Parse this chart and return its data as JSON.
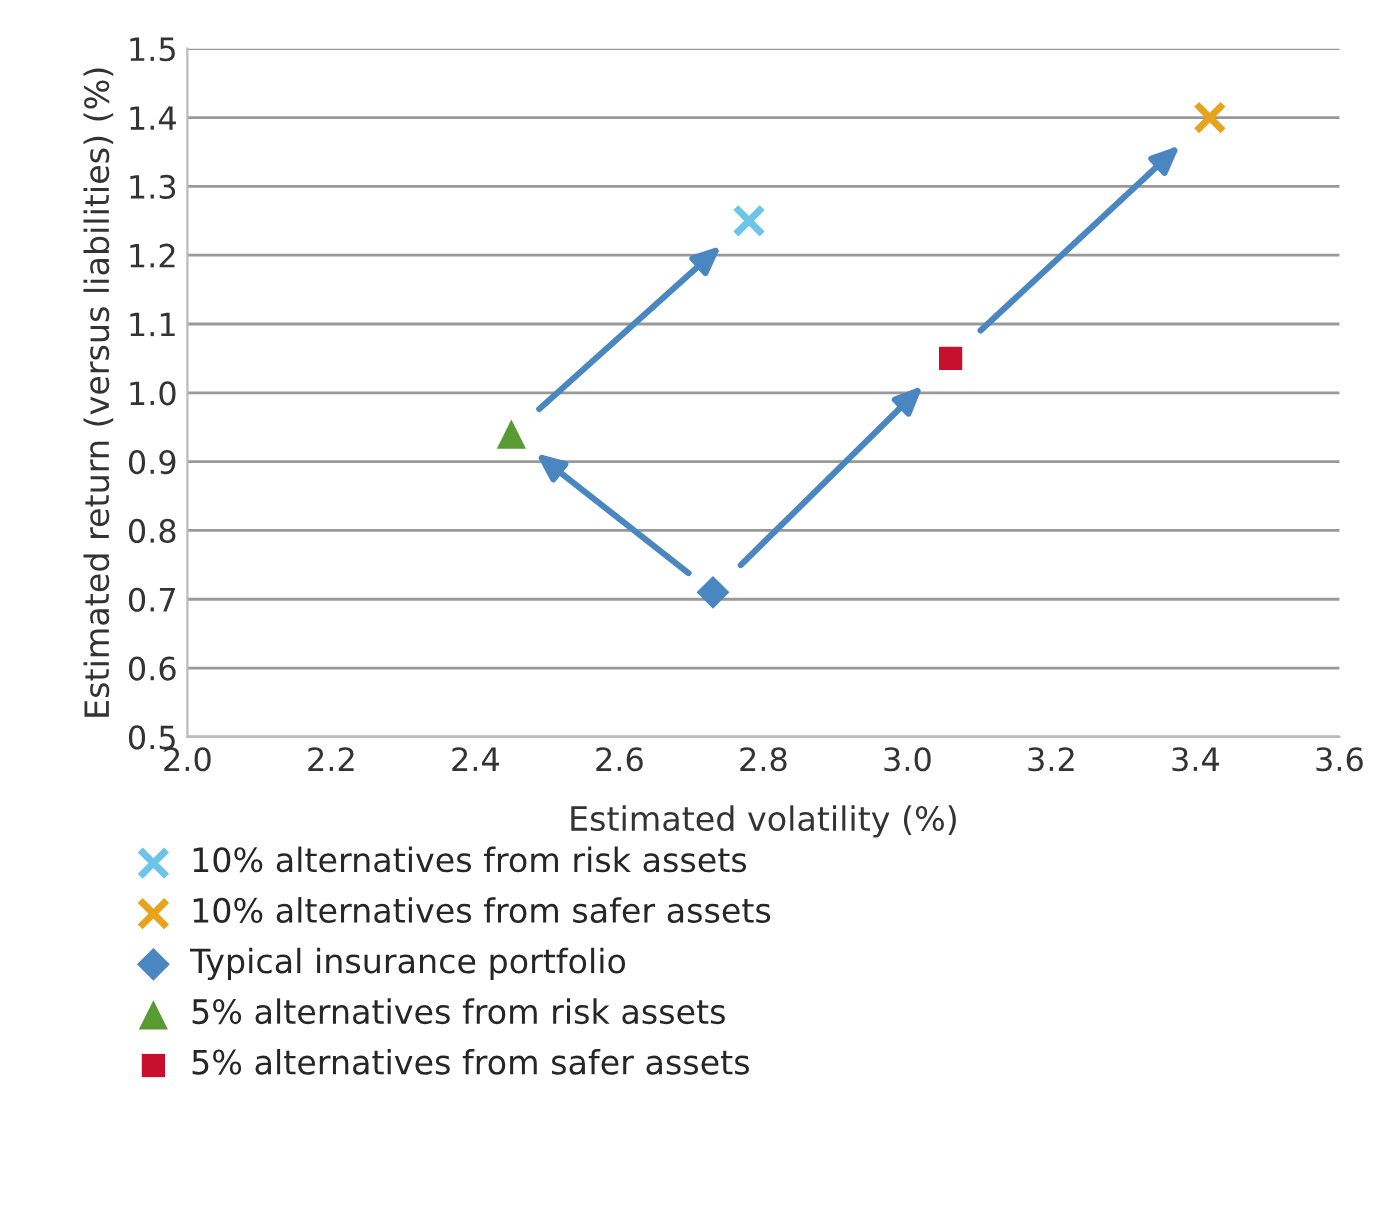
{
  "chart_data": {
    "type": "scatter",
    "xlabel": "Estimated volatility (%)",
    "ylabel": "Estimated return (versus liabilities) (%)",
    "series": [
      {
        "name": "10% alternatives from risk assets",
        "color": "#6cc5e8",
        "marker": "cross",
        "x": [
          2.78
        ],
        "values": [
          1.25
        ]
      },
      {
        "name": "10% alternatives from safer assets",
        "color": "#e8a31c",
        "marker": "cross",
        "x": [
          3.42
        ],
        "values": [
          1.4
        ]
      },
      {
        "name": "Typical insurance portfolio",
        "color": "#4a86c0",
        "marker": "diamond",
        "x": [
          2.73
        ],
        "values": [
          0.71
        ]
      },
      {
        "name": "5% alternatives from risk assets",
        "color": "#5a9a32",
        "marker": "triangle",
        "x": [
          2.45
        ],
        "values": [
          0.94
        ]
      },
      {
        "name": "5% alternatives from safer assets",
        "color": "#c8102e",
        "marker": "square",
        "x": [
          3.06
        ],
        "values": [
          1.05
        ]
      }
    ],
    "xlim": [
      2.0,
      3.6
    ],
    "xticks": [
      {
        "value": 2.0,
        "label": "2.0"
      },
      2.2,
      2.4,
      2.6,
      2.8,
      {
        "value": 3.0,
        "label": "3.0"
      },
      3.2,
      3.4,
      3.6
    ],
    "ylim": [
      0.5,
      1.5
    ],
    "yticks": [
      0.5,
      0.6,
      0.7,
      0.8,
      0.9,
      {
        "value": 1.0,
        "label": "1.0"
      },
      1.1,
      1.2,
      1.3,
      1.4,
      1.5
    ],
    "grid": "y",
    "legend": "bottom left"
  }
}
